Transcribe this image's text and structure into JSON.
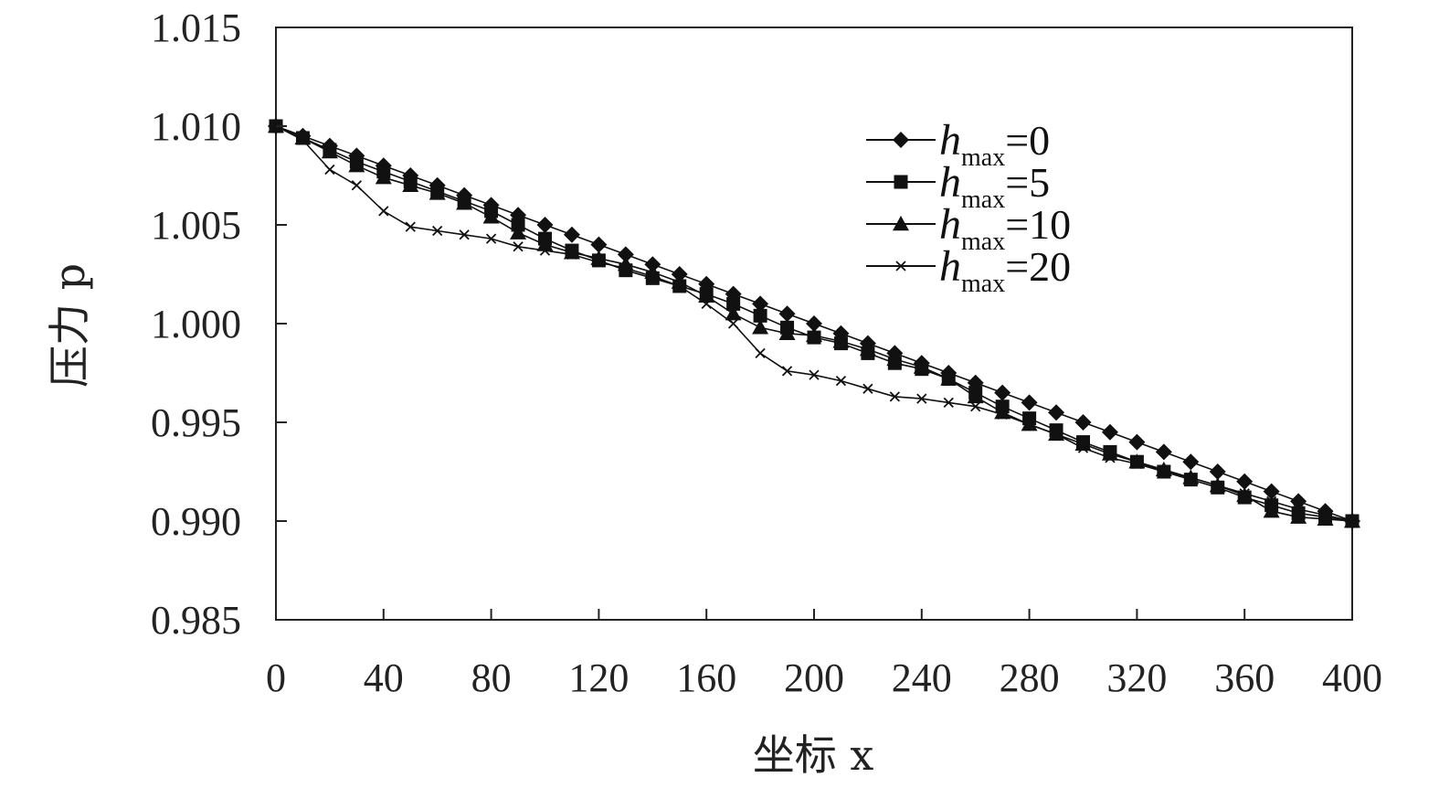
{
  "chart_data": {
    "type": "line",
    "title": "",
    "xlabel": "坐标 x",
    "ylabel": "压力 p",
    "xlim": [
      0,
      400
    ],
    "ylim": [
      0.985,
      1.015
    ],
    "xticks": [
      "0",
      "40",
      "80",
      "120",
      "160",
      "200",
      "240",
      "280",
      "320",
      "360",
      "400"
    ],
    "yticks": [
      "0.985",
      "0.990",
      "0.995",
      "1.000",
      "1.005",
      "1.010",
      "1.015"
    ],
    "grid": false,
    "legend_position": "top-right",
    "series": [
      {
        "name": "h_max=0",
        "legend_var": "h",
        "legend_sub": "max",
        "legend_val": "=0",
        "marker": "diamond",
        "x": [
          0,
          10,
          20,
          30,
          40,
          50,
          60,
          70,
          80,
          90,
          100,
          110,
          120,
          130,
          140,
          150,
          160,
          170,
          180,
          190,
          200,
          210,
          220,
          230,
          240,
          250,
          260,
          270,
          280,
          290,
          300,
          310,
          320,
          330,
          340,
          350,
          360,
          370,
          380,
          390,
          400
        ],
        "values": [
          1.01,
          1.0095,
          1.009,
          1.0085,
          1.008,
          1.0075,
          1.007,
          1.0065,
          1.006,
          1.0055,
          1.005,
          1.0045,
          1.004,
          1.0035,
          1.003,
          1.0025,
          1.002,
          1.0015,
          1.001,
          1.0005,
          1.0,
          0.9995,
          0.999,
          0.9985,
          0.998,
          0.9975,
          0.997,
          0.9965,
          0.996,
          0.9955,
          0.995,
          0.9945,
          0.994,
          0.9935,
          0.993,
          0.9925,
          0.992,
          0.9915,
          0.991,
          0.9905,
          0.99
        ]
      },
      {
        "name": "h_max=5",
        "legend_var": "h",
        "legend_sub": "max",
        "legend_val": "=5",
        "marker": "square",
        "x": [
          0,
          10,
          20,
          30,
          40,
          50,
          60,
          70,
          80,
          90,
          100,
          110,
          120,
          130,
          140,
          150,
          160,
          170,
          180,
          190,
          200,
          210,
          220,
          230,
          240,
          250,
          260,
          270,
          280,
          290,
          300,
          310,
          320,
          330,
          340,
          350,
          360,
          370,
          380,
          390,
          400
        ],
        "values": [
          1.01,
          1.0094,
          1.0088,
          1.0082,
          1.0077,
          1.0072,
          1.0067,
          1.0062,
          1.0057,
          1.005,
          1.0043,
          1.0037,
          1.0032,
          1.0027,
          1.0023,
          1.0019,
          1.0015,
          1.001,
          1.0004,
          0.9998,
          0.9993,
          0.999,
          0.9985,
          0.998,
          0.9977,
          0.9972,
          0.9965,
          0.9958,
          0.9952,
          0.9946,
          0.994,
          0.9935,
          0.993,
          0.9925,
          0.9921,
          0.9917,
          0.9912,
          0.9908,
          0.9904,
          0.9902,
          0.99
        ]
      },
      {
        "name": "h_max=10",
        "legend_var": "h",
        "legend_sub": "max",
        "legend_val": "=10",
        "marker": "triangle",
        "x": [
          0,
          10,
          20,
          30,
          40,
          50,
          60,
          70,
          80,
          90,
          100,
          110,
          120,
          130,
          140,
          150,
          160,
          170,
          180,
          190,
          200,
          210,
          220,
          230,
          240,
          250,
          260,
          270,
          280,
          290,
          300,
          310,
          320,
          330,
          340,
          350,
          360,
          370,
          380,
          390,
          400
        ],
        "values": [
          1.01,
          1.0094,
          1.0087,
          1.008,
          1.0074,
          1.007,
          1.0066,
          1.0061,
          1.0054,
          1.0046,
          1.004,
          1.0036,
          1.0033,
          1.003,
          1.0026,
          1.0021,
          1.0014,
          1.0005,
          0.9998,
          0.9995,
          0.9994,
          0.9991,
          0.9987,
          0.9982,
          0.9978,
          0.9972,
          0.9963,
          0.9955,
          0.9949,
          0.9944,
          0.9939,
          0.9934,
          0.993,
          0.9926,
          0.9922,
          0.9918,
          0.9913,
          0.9905,
          0.9902,
          0.9901,
          0.99
        ]
      },
      {
        "name": "h_max=20",
        "legend_var": "h",
        "legend_sub": "max",
        "legend_val": "=20",
        "marker": "x",
        "x": [
          0,
          10,
          20,
          30,
          40,
          50,
          60,
          70,
          80,
          90,
          100,
          110,
          120,
          130,
          140,
          150,
          160,
          170,
          180,
          190,
          200,
          210,
          220,
          230,
          240,
          250,
          260,
          270,
          280,
          290,
          300,
          310,
          320,
          330,
          340,
          350,
          360,
          370,
          380,
          390,
          400
        ],
        "values": [
          1.01,
          1.0093,
          1.0078,
          1.007,
          1.0057,
          1.0049,
          1.0047,
          1.0045,
          1.0043,
          1.0039,
          1.0037,
          1.0035,
          1.0031,
          1.0028,
          1.0024,
          1.0019,
          1.001,
          1.0,
          0.9985,
          0.9976,
          0.9974,
          0.9971,
          0.9967,
          0.9963,
          0.9962,
          0.996,
          0.9958,
          0.9954,
          0.9949,
          0.9944,
          0.9937,
          0.9932,
          0.9929,
          0.9925,
          0.9922,
          0.9918,
          0.9914,
          0.991,
          0.9906,
          0.9903,
          0.99
        ]
      }
    ]
  }
}
